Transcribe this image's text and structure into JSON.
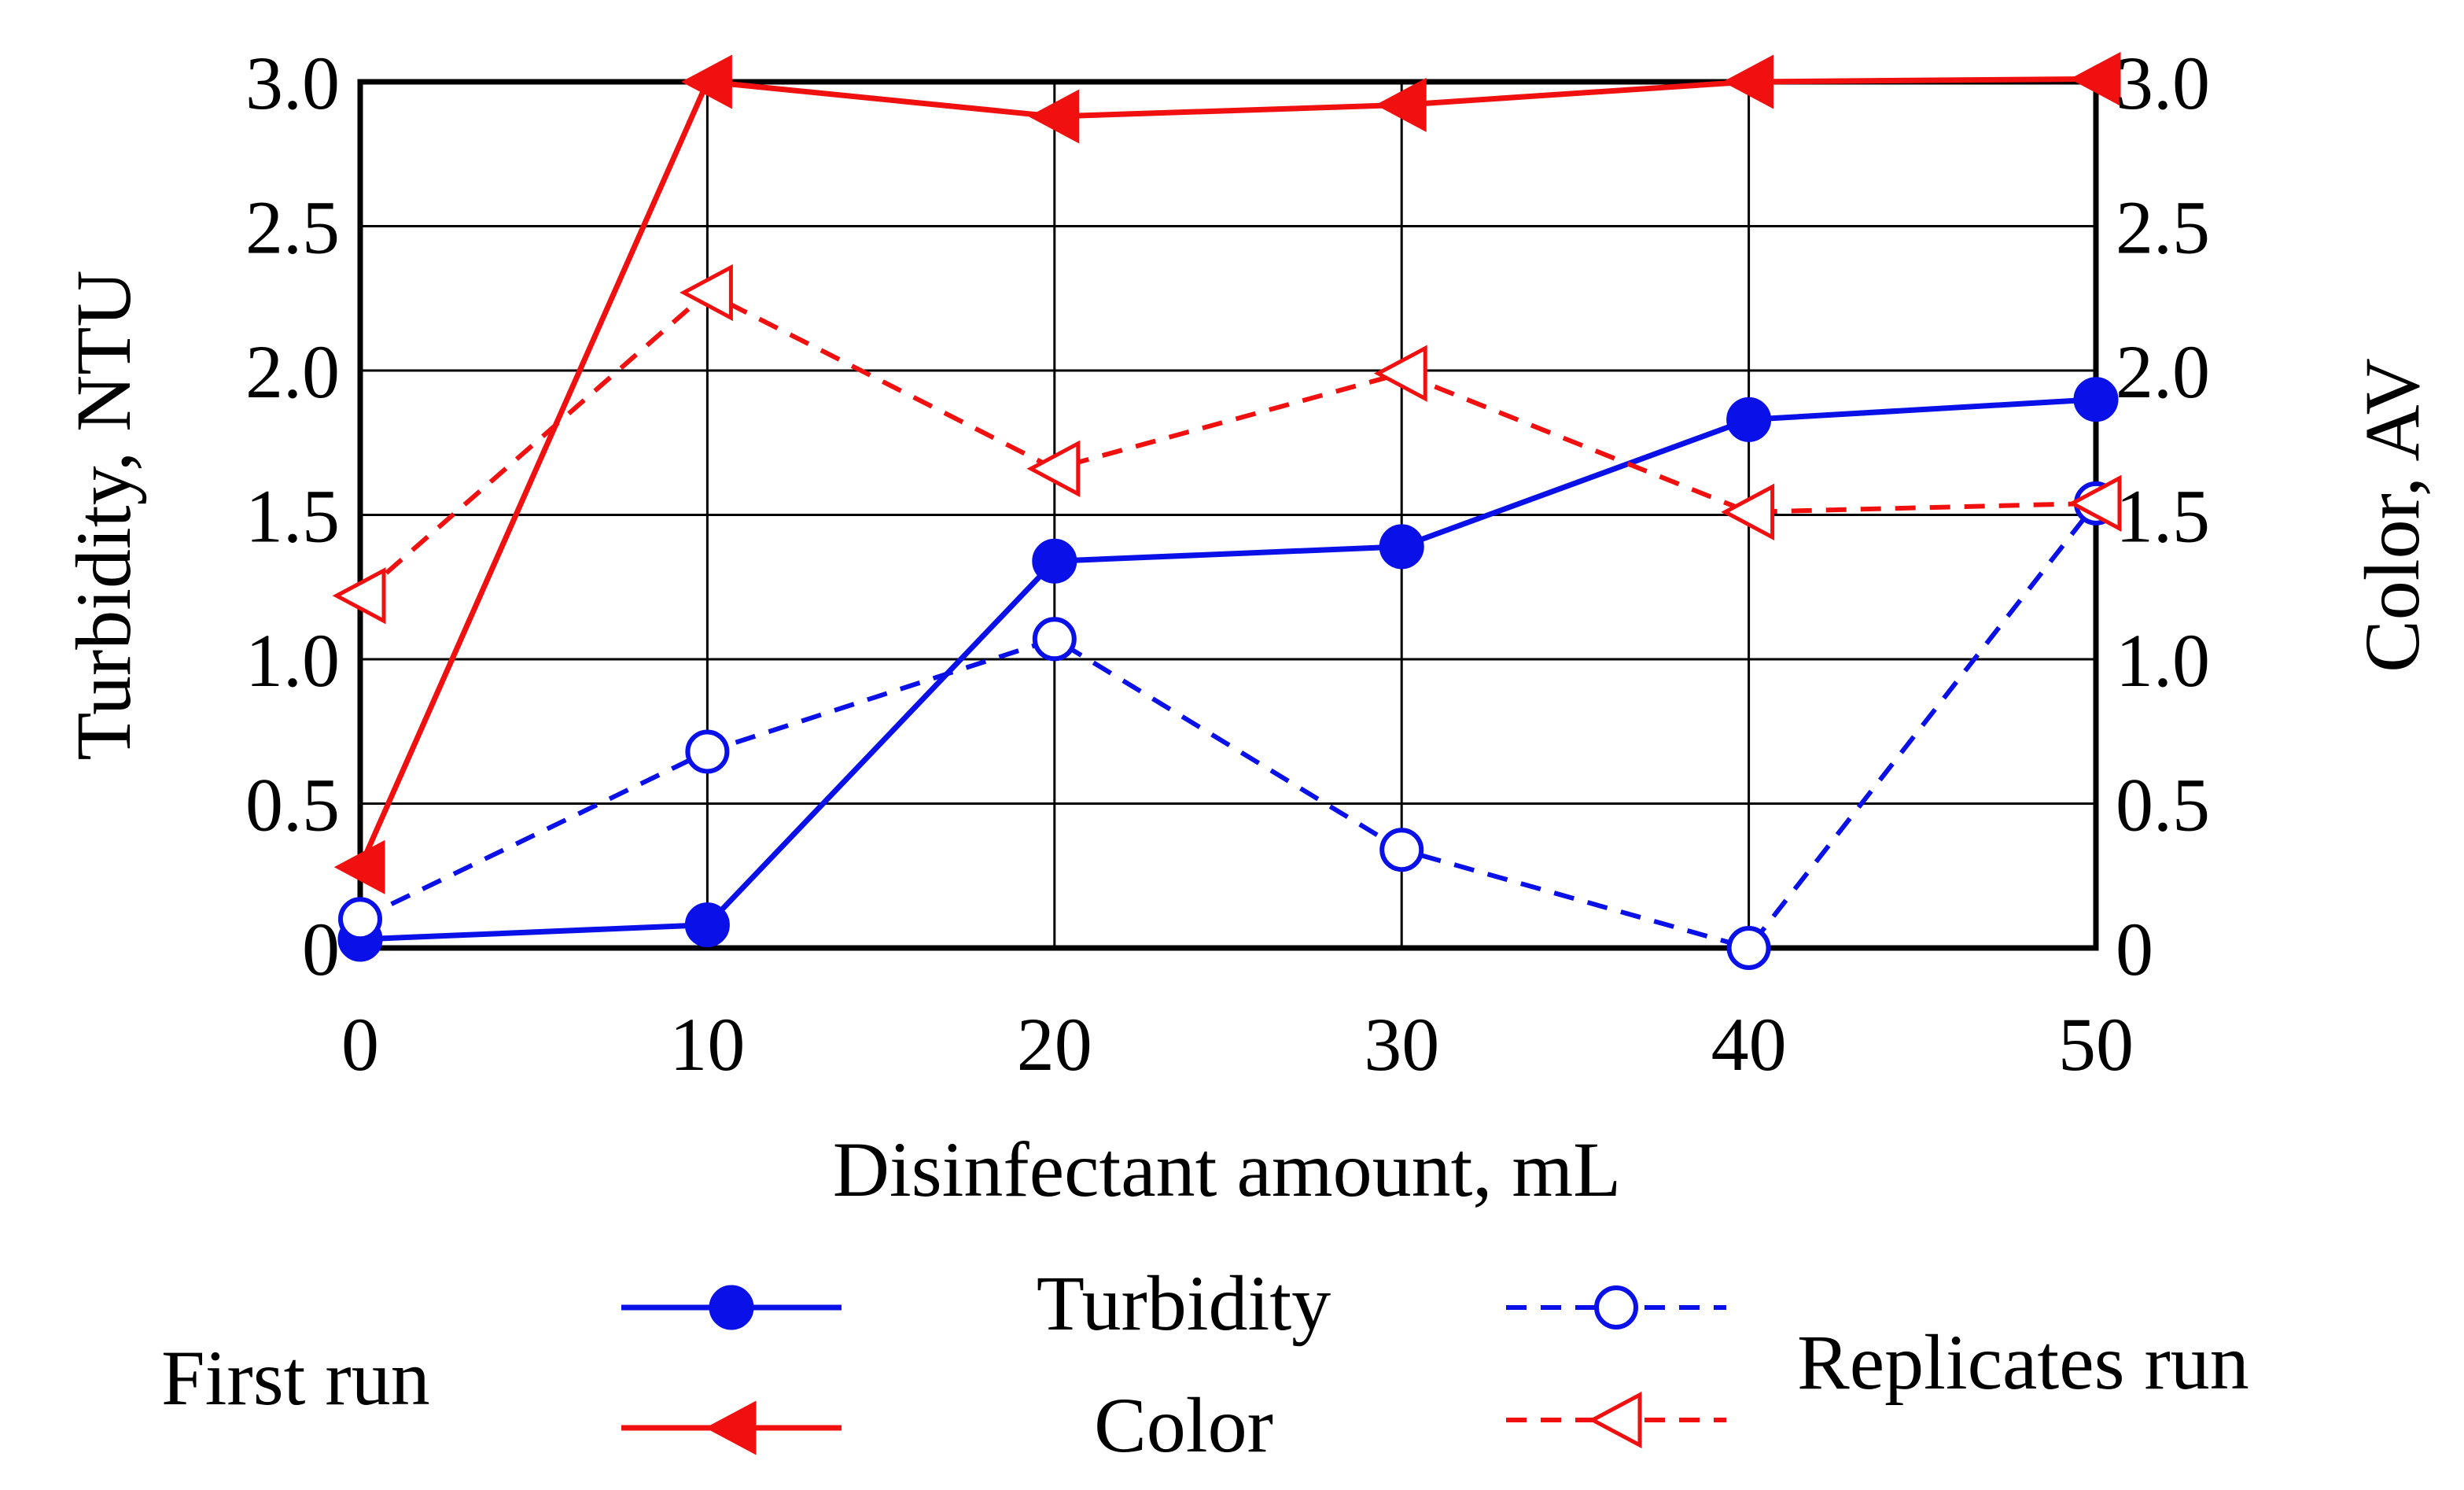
{
  "chart_data": {
    "type": "line",
    "x": [
      0,
      10,
      20,
      30,
      40,
      50
    ],
    "xlabel": "Disinfectant amount, mL",
    "ylabel_left": "Turbidity, NTU",
    "ylabel_right": "Color, AV",
    "xlim": [
      0,
      50
    ],
    "ylim_left": [
      0,
      3.0
    ],
    "ylim_right": [
      0,
      3.0
    ],
    "x_ticks": [
      "0",
      "10",
      "20",
      "30",
      "40",
      "50"
    ],
    "y_ticks": [
      "0",
      "0.5",
      "1.0",
      "1.5",
      "2.0",
      "2.5",
      "3.0"
    ],
    "y_tick_values": [
      0,
      0.5,
      1.0,
      1.5,
      2.0,
      2.5,
      3.0
    ],
    "grid": true,
    "series": [
      {
        "name": "Turbidity first run",
        "axis": "left",
        "color": "#0a10e8",
        "style": "solid",
        "marker": "filled-circle",
        "values": [
          0.03,
          0.08,
          1.34,
          1.39,
          1.83,
          1.9
        ]
      },
      {
        "name": "Color first run",
        "axis": "right",
        "color": "#f01010",
        "style": "solid",
        "marker": "filled-triangle-left",
        "values": [
          0.28,
          3.0,
          2.88,
          2.92,
          3.0,
          3.01
        ]
      },
      {
        "name": "Turbidity replicates run",
        "axis": "left",
        "color": "#0a10e8",
        "style": "dashed",
        "marker": "open-circle",
        "values": [
          0.1,
          0.68,
          1.07,
          0.34,
          0.0,
          1.54
        ]
      },
      {
        "name": "Color replicates run",
        "axis": "right",
        "color": "#f01010",
        "style": "dashed",
        "marker": "open-triangle-left",
        "values": [
          1.22,
          2.27,
          1.66,
          1.99,
          1.51,
          1.54
        ]
      }
    ],
    "legend": {
      "first_run_label": "First run",
      "replicates_run_label": "Replicates run",
      "turbidity_label": "Turbidity",
      "color_label": "Color"
    }
  }
}
